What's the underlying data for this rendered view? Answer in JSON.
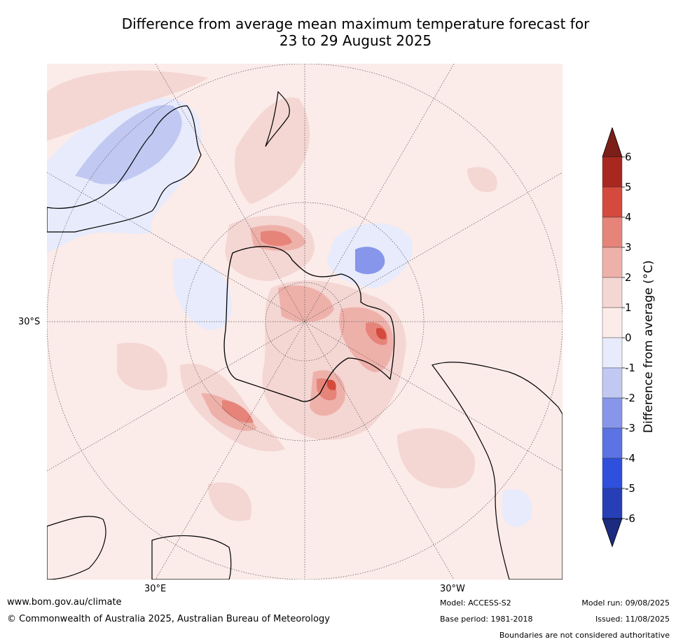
{
  "title": {
    "line1": "Difference from average mean maximum temperature forecast for",
    "line2": "23 to 29 August 2025"
  },
  "map": {
    "projection": "south polar stereographic",
    "lat_label": "30°S",
    "lon_labels": [
      "30°E",
      "30°W"
    ]
  },
  "colorbar": {
    "title": "Difference from average (°C)",
    "ticks": [
      "6",
      "5",
      "4",
      "3",
      "2",
      "1",
      "0",
      "-1",
      "-2",
      "-3",
      "-4",
      "-5",
      "-6"
    ],
    "colors_top_to_bottom": [
      "#a8281f",
      "#d44a3d",
      "#e6847a",
      "#eeb1aa",
      "#f4d6d3",
      "#fbebe9",
      "#e8ebfb",
      "#c1c9f2",
      "#8796ea",
      "#5b73e3",
      "#2f4fdd",
      "#263fb7"
    ],
    "extend_top_color": "#7b1f18",
    "extend_bottom_color": "#1c2a80"
  },
  "footer": {
    "url": "www.bom.gov.au/climate",
    "copyright": "© Commonwealth of Australia 2025, Australian Bureau of Meteorology",
    "model": "Model: ACCESS-S2",
    "base_period": "Base period: 1981-2018",
    "model_run": "Model run: 09/08/2025",
    "issued": "Issued: 11/08/2025",
    "disclaimer": "Boundaries are not considered authoritative"
  }
}
